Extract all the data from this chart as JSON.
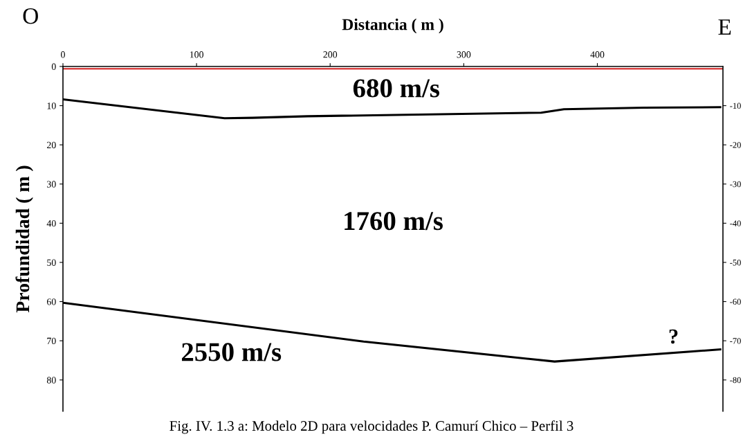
{
  "chart_data": {
    "type": "line",
    "xlabel": "Distancia ( m )",
    "ylabel": "Profundidad ( m )",
    "xlim": [
      0,
      494
    ],
    "xticks": [
      0,
      100,
      200,
      300,
      400
    ],
    "ylim": [
      88,
      0
    ],
    "yticks": [
      0,
      10,
      20,
      30,
      40,
      50,
      60,
      70,
      80
    ],
    "y2lim": [
      -88,
      0
    ],
    "y2ticks": [
      -10,
      -20,
      -30,
      -40,
      -50,
      -60,
      -70,
      -80
    ],
    "grid": false,
    "marker": "none",
    "line_style": "solid",
    "series": [
      {
        "color": "#cc0000",
        "x": [
          0,
          494
        ],
        "values": [
          0.6,
          0.6
        ]
      },
      {
        "color": "#000000",
        "x": [
          0,
          121,
          142,
          183,
          358,
          375,
          435,
          492
        ],
        "values": [
          8.4,
          13.2,
          13.1,
          12.7,
          11.8,
          10.9,
          10.5,
          10.4
        ]
      },
      {
        "color": "#000000",
        "x": [
          0,
          225,
          368,
          492
        ],
        "values": [
          60.3,
          70.2,
          75.3,
          72.2
        ]
      }
    ],
    "annotations": [
      "680 m/s",
      "1760 m/s",
      "2550 m/s",
      {
        "text": "?",
        "x": 457,
        "y": 72.8
      },
      "O",
      "E",
      "Fig. IV. 1.3 a: Modelo 2D para velocidades P. Camurí Chico – Perfil 3"
    ]
  }
}
